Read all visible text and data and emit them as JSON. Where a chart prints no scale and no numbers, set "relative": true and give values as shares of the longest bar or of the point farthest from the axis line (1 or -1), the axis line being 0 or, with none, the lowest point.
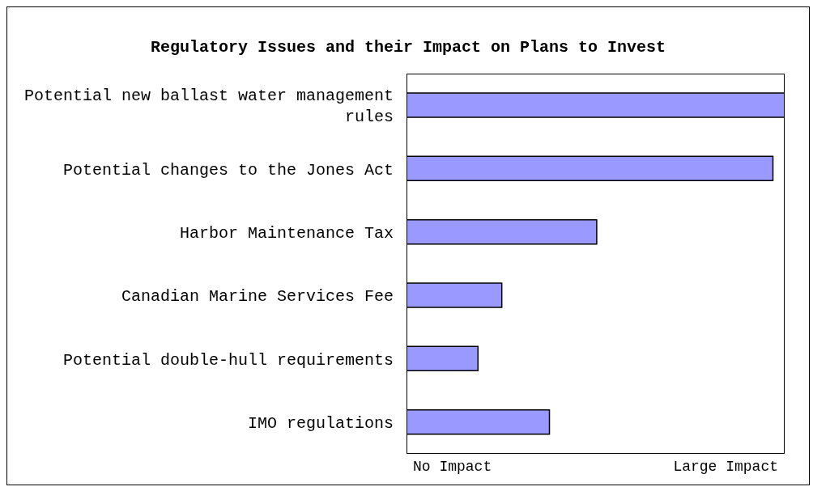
{
  "chart_data": {
    "type": "bar",
    "orientation": "horizontal",
    "relative": true,
    "title": "Regulatory Issues and their Impact on Plans to Invest",
    "categories": [
      "Potential new ballast water management rules",
      "Potential changes to the Jones Act",
      "Harbor Maintenance Tax",
      "Canadian Marine Services Fee",
      "Potential double-hull requirements",
      "IMO regulations"
    ],
    "values": [
      1,
      0.969,
      0.503,
      0.252,
      0.189,
      0.378
    ],
    "color": "#9999ff",
    "annotations": [
      "No Impact",
      "Large Impact"
    ]
  }
}
